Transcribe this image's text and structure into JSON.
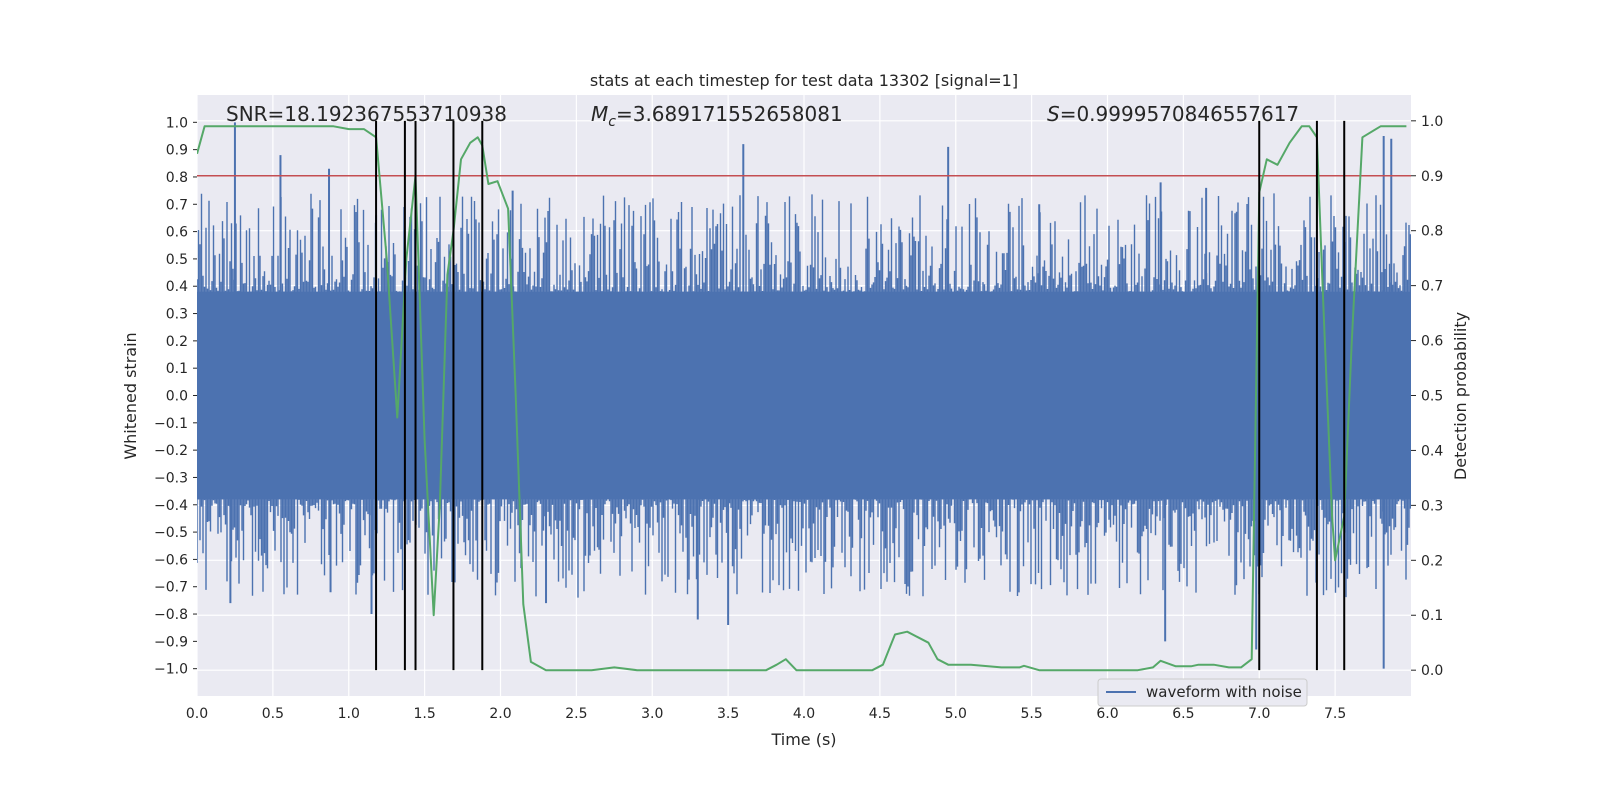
{
  "chart_data": {
    "type": "line",
    "title": "stats at each timestep for test data 13302 [signal=1]",
    "xlabel": "Time (s)",
    "ylabel": "Whitened strain",
    "y2label": "Detection probability",
    "xlim": [
      0,
      8
    ],
    "ylim": [
      -1.1,
      1.1
    ],
    "y2lim": [
      -0.047,
      1.047
    ],
    "xticks": [
      "0.0",
      "0.5",
      "1.0",
      "1.5",
      "2.0",
      "2.5",
      "3.0",
      "3.5",
      "4.0",
      "4.5",
      "5.0",
      "5.5",
      "6.0",
      "6.5",
      "7.0",
      "7.5"
    ],
    "yticks": [
      "1.0",
      "0.9",
      "0.8",
      "0.7",
      "0.6",
      "0.5",
      "0.4",
      "0.3",
      "0.2",
      "0.1",
      "0.0",
      "−0.1",
      "−0.2",
      "−0.3",
      "−0.4",
      "−0.5",
      "−0.6",
      "−0.7",
      "−0.8",
      "−0.9",
      "−1.0"
    ],
    "y2ticks": [
      "1.0",
      "0.9",
      "0.8",
      "0.7",
      "0.6",
      "0.5",
      "0.4",
      "0.3",
      "0.2",
      "0.1",
      "0.0"
    ],
    "annotations": {
      "snr": "SNR=18.192367553710938",
      "mc_symbol": "M",
      "mc_sub": "c",
      "mc_value": "=3.689171552658081",
      "s_symbol": "S",
      "s_value": "=0.9999570846557617"
    },
    "legend": {
      "label": "waveform with noise",
      "position": "lower right"
    },
    "threshold": {
      "axis": "right",
      "value": 0.9,
      "color": "#c44e52"
    },
    "vlines": [
      1.18,
      1.37,
      1.44,
      1.69,
      1.88,
      7.0,
      7.38,
      7.56
    ],
    "series": [
      {
        "name": "waveform with noise",
        "axis": "left",
        "color": "#4c72b0",
        "style": "noise-band",
        "core_amplitude": 0.38,
        "peaks": [
          {
            "x": 0.25,
            "y": 1.0
          },
          {
            "x": 0.55,
            "y": 0.88
          },
          {
            "x": 0.87,
            "y": 0.83
          },
          {
            "x": 1.18,
            "y": 0.66
          },
          {
            "x": 2.08,
            "y": 0.75
          },
          {
            "x": 3.6,
            "y": 0.92
          },
          {
            "x": 4.95,
            "y": 0.91
          },
          {
            "x": 5.55,
            "y": 0.7
          },
          {
            "x": 6.35,
            "y": 0.78
          },
          {
            "x": 6.65,
            "y": 0.76
          },
          {
            "x": 7.82,
            "y": 0.95
          },
          {
            "x": 7.87,
            "y": 0.94
          }
        ],
        "troughs": [
          {
            "x": 0.22,
            "y": -0.76
          },
          {
            "x": 0.88,
            "y": -0.72
          },
          {
            "x": 1.15,
            "y": -0.8
          },
          {
            "x": 2.3,
            "y": -0.76
          },
          {
            "x": 3.3,
            "y": -0.82
          },
          {
            "x": 3.5,
            "y": -0.84
          },
          {
            "x": 6.38,
            "y": -0.9
          },
          {
            "x": 6.98,
            "y": -0.93
          },
          {
            "x": 7.82,
            "y": -1.0
          }
        ]
      },
      {
        "name": "detection probability",
        "axis": "right",
        "color": "#55a868",
        "x": [
          0.0,
          0.05,
          0.1,
          0.3,
          0.5,
          0.7,
          0.9,
          1.0,
          1.1,
          1.18,
          1.25,
          1.32,
          1.38,
          1.44,
          1.5,
          1.56,
          1.6,
          1.65,
          1.69,
          1.74,
          1.8,
          1.85,
          1.88,
          1.92,
          1.98,
          2.05,
          2.1,
          2.15,
          2.2,
          2.3,
          2.5,
          2.6,
          2.75,
          2.9,
          3.2,
          3.5,
          3.75,
          3.82,
          3.88,
          3.95,
          4.1,
          4.3,
          4.45,
          4.52,
          4.6,
          4.68,
          4.75,
          4.82,
          4.88,
          4.95,
          5.1,
          5.3,
          5.42,
          5.45,
          5.55,
          5.7,
          6.0,
          6.2,
          6.3,
          6.35,
          6.45,
          6.55,
          6.6,
          6.7,
          6.8,
          6.88,
          6.95,
          7.0,
          7.05,
          7.12,
          7.2,
          7.28,
          7.33,
          7.38,
          7.42,
          7.48,
          7.5,
          7.56,
          7.61,
          7.68,
          7.8,
          7.97
        ],
        "y": [
          0.94,
          0.99,
          0.99,
          0.99,
          0.99,
          0.99,
          0.99,
          0.985,
          0.985,
          0.97,
          0.75,
          0.46,
          0.75,
          0.9,
          0.42,
          0.1,
          0.3,
          0.72,
          0.8,
          0.93,
          0.96,
          0.97,
          0.955,
          0.885,
          0.89,
          0.84,
          0.5,
          0.12,
          0.015,
          0.0,
          0.0,
          0.0,
          0.005,
          0.0,
          0.0,
          0.0,
          0.0,
          0.01,
          0.02,
          0.0,
          0.0,
          0.0,
          0.0,
          0.01,
          0.065,
          0.07,
          0.06,
          0.05,
          0.02,
          0.01,
          0.01,
          0.005,
          0.005,
          0.008,
          0.0,
          0.0,
          0.0,
          0.0,
          0.005,
          0.017,
          0.007,
          0.007,
          0.01,
          0.01,
          0.005,
          0.005,
          0.02,
          0.87,
          0.93,
          0.92,
          0.96,
          0.99,
          0.99,
          0.97,
          0.68,
          0.28,
          0.2,
          0.28,
          0.6,
          0.97,
          0.99,
          0.99
        ]
      }
    ]
  }
}
